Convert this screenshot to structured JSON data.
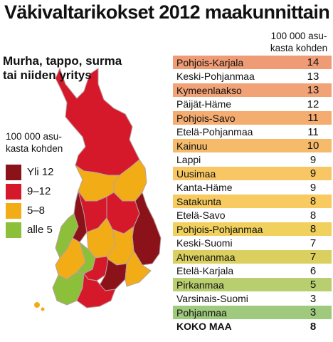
{
  "title": "Väkivaltarikokset 2012 maakunnittain",
  "subtitle": [
    "Murha, tappo, surma",
    "tai niiden yritys"
  ],
  "legend": {
    "unit": [
      "100 000 asu-",
      "kasta kohden"
    ],
    "items": [
      {
        "label": "Yli 12",
        "color": "#8b1219"
      },
      {
        "label": "9–12",
        "color": "#d6192a"
      },
      {
        "label": "5–8",
        "color": "#f2ad16"
      },
      {
        "label": "alle 5",
        "color": "#8cbf3a"
      }
    ]
  },
  "table": {
    "unit": [
      "100 000 asu-",
      "kasta kohden"
    ],
    "rows": [
      {
        "region": "Pohjois-Karjala",
        "value": "14",
        "band": "#ef9b75"
      },
      {
        "region": "Keski-Pohjanmaa",
        "value": "13",
        "band": "#ffffff"
      },
      {
        "region": "Kymeenlaakso",
        "value": "13",
        "band": "#f1a276"
      },
      {
        "region": "Päijät-Häme",
        "value": "12",
        "band": "#ffffff"
      },
      {
        "region": "Pohjois-Savo",
        "value": "11",
        "band": "#f4ac70"
      },
      {
        "region": "Etelä-Pohjanmaa",
        "value": "11",
        "band": "#ffffff"
      },
      {
        "region": "Kainuu",
        "value": "10",
        "band": "#f6bb6a"
      },
      {
        "region": "Lappi",
        "value": "9",
        "band": "#ffffff"
      },
      {
        "region": "Uusimaa",
        "value": "9",
        "band": "#f8c764"
      },
      {
        "region": "Kanta-Häme",
        "value": "9",
        "band": "#ffffff"
      },
      {
        "region": "Satakunta",
        "value": "8",
        "band": "#f7cb5f"
      },
      {
        "region": "Etelä-Savo",
        "value": "8",
        "band": "#ffffff"
      },
      {
        "region": "Pohjois-Pohjanmaa",
        "value": "8",
        "band": "#f1d15d"
      },
      {
        "region": "Keski-Suomi",
        "value": "7",
        "band": "#ffffff"
      },
      {
        "region": "Ahvenanmaa",
        "value": "7",
        "band": "#dbd05f"
      },
      {
        "region": "Etelä-Karjala",
        "value": "6",
        "band": "#ffffff"
      },
      {
        "region": "Pirkanmaa",
        "value": "5",
        "band": "#b9cf6f"
      },
      {
        "region": "Varsinais-Suomi",
        "value": "3",
        "band": "#ffffff"
      },
      {
        "region": "Pohjanmaa",
        "value": "3",
        "band": "#9fc97c"
      }
    ],
    "total": {
      "region": "KOKO MAA",
      "value": "8"
    }
  }
}
